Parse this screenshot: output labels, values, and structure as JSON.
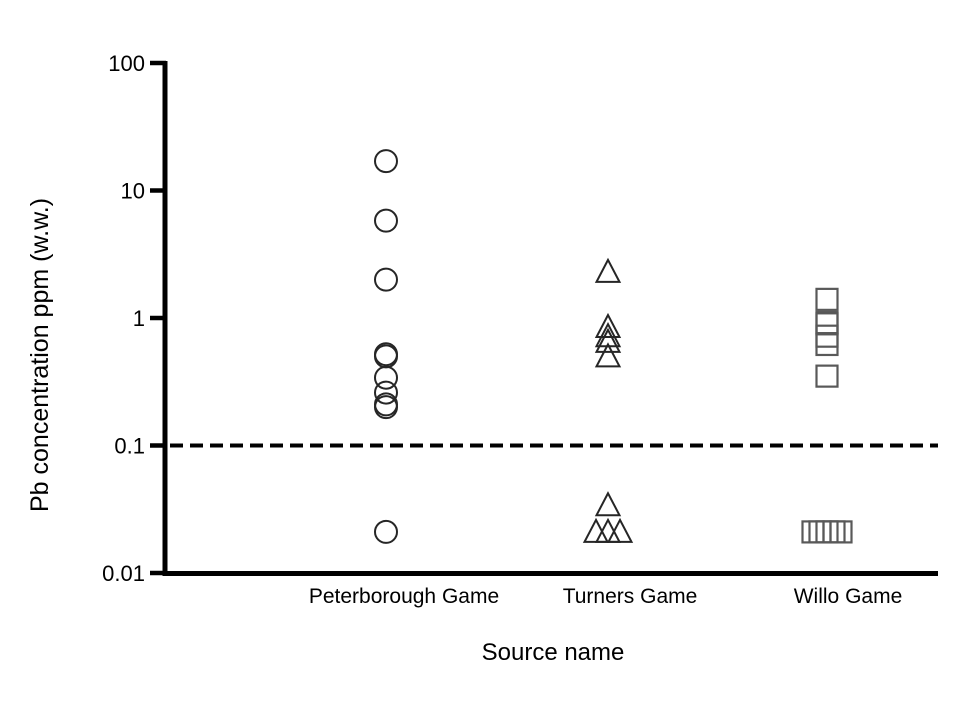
{
  "chart_data": {
    "type": "scatter",
    "title": "",
    "xlabel": "Source name",
    "ylabel": "Pb concentration ppm (w.w.)",
    "y_scale": "log",
    "ylim": [
      0.01,
      100
    ],
    "y_ticks": [
      100,
      10,
      1,
      0.1,
      0.01
    ],
    "y_tick_labels": [
      "100",
      "10",
      "1",
      "0.1",
      "0.01"
    ],
    "grid": false,
    "legend": false,
    "reference_line": {
      "y": 0.1,
      "style": "dashed",
      "color": "#000000"
    },
    "categories": [
      "Peterborough Game",
      "Turners Game",
      "Willo Game"
    ],
    "series": [
      {
        "name": "Peterborough Game",
        "marker": "circle",
        "color": "#262626",
        "values": [
          17,
          5.8,
          2.0,
          0.52,
          0.5,
          0.34,
          0.26,
          0.21,
          0.2,
          0.021
        ],
        "x_jitter": [
          0,
          0,
          0,
          0,
          0,
          0,
          0,
          0,
          0,
          0
        ]
      },
      {
        "name": "Turners Game",
        "marker": "triangle",
        "color": "#262626",
        "values": [
          2.3,
          0.85,
          0.72,
          0.65,
          0.5,
          0.034,
          0.021,
          0.021,
          0.021
        ],
        "x_jitter": [
          0,
          0,
          0,
          0,
          0,
          0,
          -12,
          0,
          12
        ]
      },
      {
        "name": "Willo Game",
        "marker": "square",
        "color": "#595959",
        "values": [
          1.4,
          0.92,
          0.9,
          0.72,
          0.62,
          0.35,
          0.021,
          0.021,
          0.021,
          0.021,
          0.021
        ],
        "x_jitter": [
          0,
          0,
          0,
          0,
          0,
          0,
          -14,
          -7,
          0,
          7,
          14
        ]
      }
    ],
    "axis_color": "#000000"
  }
}
